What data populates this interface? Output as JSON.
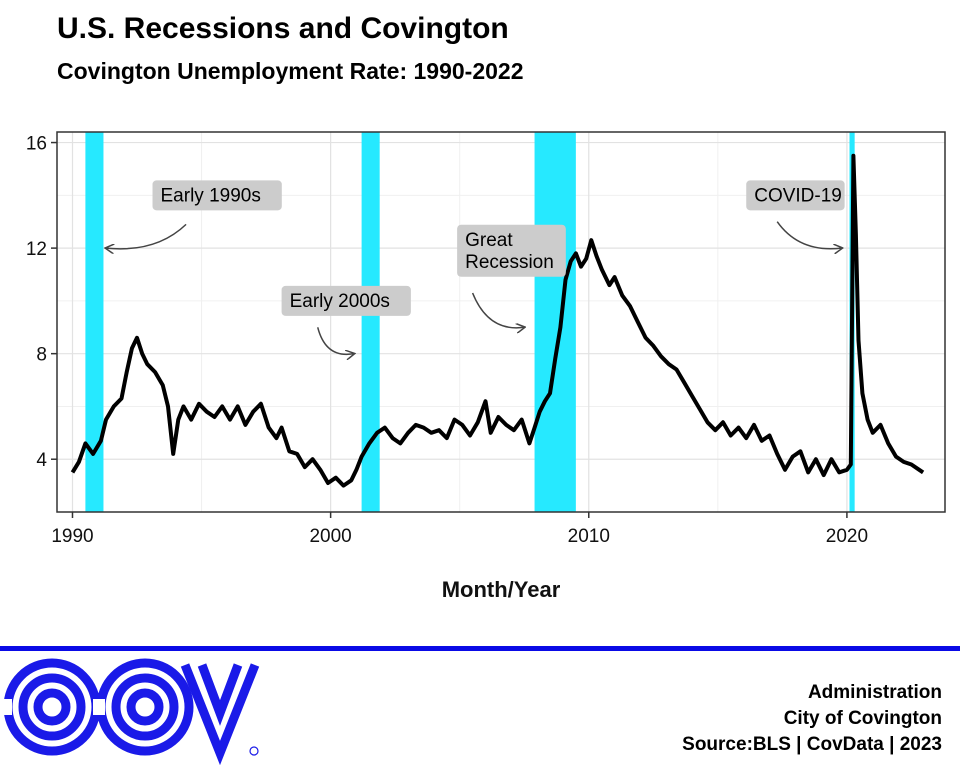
{
  "header": {
    "title": "U.S. Recessions and Covington",
    "subtitle": "Covington Unemployment Rate: 1990-2022"
  },
  "footer": {
    "lines": [
      "Administration",
      "City of Covington",
      "Source:BLS | CovData | 2023"
    ],
    "logo_text": "COV",
    "rule_color": "#0a0ae6"
  },
  "chart_data": {
    "type": "line",
    "title": "U.S. Recessions and Covington",
    "subtitle": "Covington Unemployment Rate: 1990-2022",
    "xlabel": "Month/Year",
    "ylabel": "",
    "xlim": [
      1989.4,
      2023.8
    ],
    "ylim": [
      2.0,
      16.4
    ],
    "x_ticks": [
      1990,
      2000,
      2010,
      2020
    ],
    "y_ticks": [
      4,
      8,
      12,
      16
    ],
    "grid": true,
    "line_color": "#000000",
    "recession_color": "#26e9ff",
    "recessions": [
      {
        "start": 1990.5,
        "end": 1991.2
      },
      {
        "start": 2001.2,
        "end": 2001.9
      },
      {
        "start": 2007.9,
        "end": 2009.5
      },
      {
        "start": 2020.1,
        "end": 2020.3
      }
    ],
    "annotations": [
      {
        "lines": [
          "Early 1990s"
        ],
        "x": 1993.1,
        "y": 14.0,
        "arrow_from": [
          1994.4,
          12.9
        ],
        "arrow_to": [
          1991.3,
          12.0
        ]
      },
      {
        "lines": [
          "Early 2000s"
        ],
        "x": 1998.1,
        "y": 10.0,
        "arrow_from": [
          1999.5,
          9.0
        ],
        "arrow_to": [
          2000.9,
          8.0
        ]
      },
      {
        "lines": [
          "Great",
          "Recession"
        ],
        "x": 2004.9,
        "y": 11.9,
        "arrow_from": [
          2005.5,
          10.3
        ],
        "arrow_to": [
          2007.5,
          9.0
        ]
      },
      {
        "lines": [
          "COVID-19"
        ],
        "x": 2016.1,
        "y": 14.0,
        "arrow_from": [
          2017.3,
          13.0
        ],
        "arrow_to": [
          2019.8,
          12.0
        ]
      }
    ],
    "series": [
      {
        "values": [
          [
            1990.0,
            3.5
          ],
          [
            1990.25,
            3.9
          ],
          [
            1990.5,
            4.6
          ],
          [
            1990.8,
            4.2
          ],
          [
            1991.1,
            4.7
          ],
          [
            1991.3,
            5.5
          ],
          [
            1991.6,
            6.0
          ],
          [
            1991.9,
            6.3
          ],
          [
            1992.1,
            7.3
          ],
          [
            1992.3,
            8.2
          ],
          [
            1992.5,
            8.6
          ],
          [
            1992.7,
            8.0
          ],
          [
            1992.9,
            7.6
          ],
          [
            1993.2,
            7.3
          ],
          [
            1993.5,
            6.8
          ],
          [
            1993.7,
            6.0
          ],
          [
            1993.9,
            4.2
          ],
          [
            1994.1,
            5.5
          ],
          [
            1994.3,
            6.0
          ],
          [
            1994.6,
            5.5
          ],
          [
            1994.9,
            6.1
          ],
          [
            1995.2,
            5.8
          ],
          [
            1995.5,
            5.6
          ],
          [
            1995.8,
            6.0
          ],
          [
            1996.1,
            5.5
          ],
          [
            1996.4,
            6.0
          ],
          [
            1996.7,
            5.3
          ],
          [
            1997.0,
            5.8
          ],
          [
            1997.3,
            6.1
          ],
          [
            1997.6,
            5.2
          ],
          [
            1997.9,
            4.8
          ],
          [
            1998.1,
            5.2
          ],
          [
            1998.4,
            4.3
          ],
          [
            1998.7,
            4.2
          ],
          [
            1999.0,
            3.7
          ],
          [
            1999.3,
            4.0
          ],
          [
            1999.6,
            3.6
          ],
          [
            1999.9,
            3.1
          ],
          [
            2000.2,
            3.3
          ],
          [
            2000.5,
            3.0
          ],
          [
            2000.8,
            3.2
          ],
          [
            2001.0,
            3.6
          ],
          [
            2001.2,
            4.1
          ],
          [
            2001.5,
            4.6
          ],
          [
            2001.8,
            5.0
          ],
          [
            2002.1,
            5.2
          ],
          [
            2002.4,
            4.8
          ],
          [
            2002.7,
            4.6
          ],
          [
            2003.0,
            5.0
          ],
          [
            2003.3,
            5.3
          ],
          [
            2003.6,
            5.2
          ],
          [
            2003.9,
            5.0
          ],
          [
            2004.2,
            5.1
          ],
          [
            2004.5,
            4.8
          ],
          [
            2004.8,
            5.5
          ],
          [
            2005.1,
            5.3
          ],
          [
            2005.4,
            4.9
          ],
          [
            2005.7,
            5.4
          ],
          [
            2006.0,
            6.2
          ],
          [
            2006.2,
            5.0
          ],
          [
            2006.5,
            5.6
          ],
          [
            2006.8,
            5.3
          ],
          [
            2007.1,
            5.1
          ],
          [
            2007.4,
            5.5
          ],
          [
            2007.7,
            4.6
          ],
          [
            2007.9,
            5.2
          ],
          [
            2008.1,
            5.8
          ],
          [
            2008.3,
            6.2
          ],
          [
            2008.5,
            6.5
          ],
          [
            2008.7,
            7.8
          ],
          [
            2008.9,
            9.0
          ],
          [
            2009.1,
            10.8
          ],
          [
            2009.3,
            11.5
          ],
          [
            2009.5,
            11.8
          ],
          [
            2009.7,
            11.3
          ],
          [
            2009.9,
            11.6
          ],
          [
            2010.1,
            12.3
          ],
          [
            2010.3,
            11.7
          ],
          [
            2010.5,
            11.2
          ],
          [
            2010.8,
            10.6
          ],
          [
            2011.0,
            10.9
          ],
          [
            2011.3,
            10.2
          ],
          [
            2011.6,
            9.8
          ],
          [
            2011.9,
            9.2
          ],
          [
            2012.2,
            8.6
          ],
          [
            2012.5,
            8.3
          ],
          [
            2012.8,
            7.9
          ],
          [
            2013.1,
            7.6
          ],
          [
            2013.4,
            7.4
          ],
          [
            2013.7,
            6.9
          ],
          [
            2014.0,
            6.4
          ],
          [
            2014.3,
            5.9
          ],
          [
            2014.6,
            5.4
          ],
          [
            2014.9,
            5.1
          ],
          [
            2015.2,
            5.4
          ],
          [
            2015.5,
            4.9
          ],
          [
            2015.8,
            5.2
          ],
          [
            2016.1,
            4.8
          ],
          [
            2016.4,
            5.3
          ],
          [
            2016.7,
            4.7
          ],
          [
            2017.0,
            4.9
          ],
          [
            2017.3,
            4.2
          ],
          [
            2017.6,
            3.6
          ],
          [
            2017.9,
            4.1
          ],
          [
            2018.2,
            4.3
          ],
          [
            2018.5,
            3.5
          ],
          [
            2018.8,
            4.0
          ],
          [
            2019.1,
            3.4
          ],
          [
            2019.4,
            4.0
          ],
          [
            2019.7,
            3.5
          ],
          [
            2020.0,
            3.6
          ],
          [
            2020.15,
            3.8
          ],
          [
            2020.25,
            15.5
          ],
          [
            2020.35,
            12.5
          ],
          [
            2020.45,
            8.5
          ],
          [
            2020.6,
            6.5
          ],
          [
            2020.8,
            5.5
          ],
          [
            2021.0,
            5.0
          ],
          [
            2021.3,
            5.3
          ],
          [
            2021.6,
            4.6
          ],
          [
            2021.9,
            4.1
          ],
          [
            2022.2,
            3.9
          ],
          [
            2022.5,
            3.8
          ],
          [
            2022.8,
            3.6
          ],
          [
            2022.95,
            3.5
          ]
        ]
      }
    ]
  }
}
